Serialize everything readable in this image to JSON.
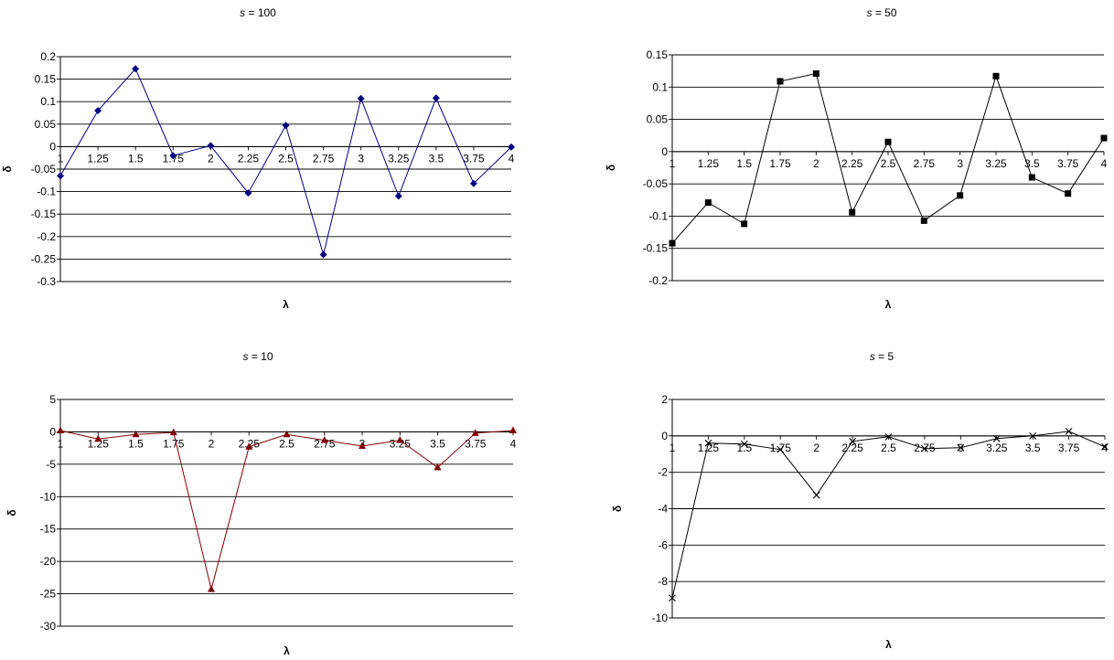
{
  "chart_data": [
    {
      "type": "line",
      "title": "s = 100",
      "title_var": "s",
      "title_rest": " = 100",
      "xlabel": "λ",
      "ylabel": "δ",
      "categories": [
        "1",
        "1.25",
        "1.5",
        "1.75",
        "2",
        "2.25",
        "2.5",
        "2.75",
        "3",
        "3.25",
        "3.5",
        "3.75",
        "4"
      ],
      "series": [
        {
          "values": [
            -0.065,
            0.08,
            0.173,
            -0.02,
            0.002,
            -0.103,
            0.047,
            -0.24,
            0.107,
            -0.11,
            0.108,
            -0.082,
            -0.001
          ],
          "color": "#000080",
          "marker": "diamond"
        }
      ],
      "ylim": [
        -0.3,
        0.2
      ],
      "yticks": [
        0.2,
        0.15,
        0.1,
        0.05,
        0,
        -0.05,
        -0.1,
        -0.15,
        -0.2,
        -0.25,
        -0.3
      ],
      "ytick_labels": [
        "0.2",
        "0.15",
        "0.1",
        "0.05",
        "0",
        "-0.05",
        "-0.1",
        "-0.15",
        "-0.2",
        "-0.25",
        "-0.3"
      ],
      "grid": true,
      "legend": "none"
    },
    {
      "type": "line",
      "title": "s = 50",
      "title_var": "s",
      "title_rest": " = 50",
      "xlabel": "λ",
      "ylabel": "δ",
      "categories": [
        "1",
        "1.25",
        "1.5",
        "1.75",
        "2",
        "2.25",
        "2.5",
        "2.75",
        "3",
        "3.25",
        "3.5",
        "3.75",
        "4"
      ],
      "series": [
        {
          "values": [
            -0.142,
            -0.079,
            -0.112,
            0.109,
            0.121,
            -0.094,
            0.015,
            -0.107,
            -0.068,
            0.117,
            -0.04,
            -0.065,
            0.021
          ],
          "color": "#000000",
          "marker": "square"
        }
      ],
      "ylim": [
        -0.2,
        0.15
      ],
      "yticks": [
        0.15,
        0.1,
        0.05,
        0,
        -0.05,
        -0.1,
        -0.15,
        -0.2
      ],
      "ytick_labels": [
        "0.15",
        "0.1",
        "0.05",
        "0",
        "-0.05",
        "-0.1",
        "-0.15",
        "-0.2"
      ],
      "grid": true,
      "legend": "none"
    },
    {
      "type": "line",
      "title": "s = 10",
      "title_var": "s",
      "title_rest": " = 10",
      "xlabel": "λ",
      "ylabel": "δ",
      "categories": [
        "1",
        "1.25",
        "1.5",
        "1.75",
        "2",
        "2.25",
        "2.5",
        "2.75",
        "3",
        "3.25",
        "3.5",
        "3.75",
        "4"
      ],
      "series": [
        {
          "values": [
            0.2,
            -1.1,
            -0.4,
            -0.1,
            -24.3,
            -2.3,
            -0.4,
            -1.3,
            -2.2,
            -1.3,
            -5.5,
            -0.2,
            0.2
          ],
          "color": "#800000",
          "marker": "triangle"
        }
      ],
      "ylim": [
        -30,
        5
      ],
      "yticks": [
        5,
        0,
        -5,
        -10,
        -15,
        -20,
        -25,
        -30
      ],
      "ytick_labels": [
        "5",
        "0",
        "-5",
        "-10",
        "-15",
        "-20",
        "-25",
        "-30"
      ],
      "grid": true,
      "legend": "none"
    },
    {
      "type": "line",
      "title": "s = 5",
      "title_var": "s",
      "title_rest": " = 5",
      "xlabel": "λ",
      "ylabel": "δ",
      "categories": [
        "1",
        "1.25",
        "1.5",
        "1.75",
        "2",
        "2.25",
        "2.5",
        "2.75",
        "3",
        "3.25",
        "3.5",
        "3.75",
        "4"
      ],
      "series": [
        {
          "values": [
            -8.9,
            -0.4,
            -0.45,
            -0.75,
            -3.25,
            -0.3,
            -0.05,
            -0.7,
            -0.65,
            -0.15,
            0.0,
            0.25,
            -0.6
          ],
          "color": "#000000",
          "marker": "x"
        }
      ],
      "ylim": [
        -10,
        2
      ],
      "yticks": [
        2,
        0,
        -2,
        -4,
        -6,
        -8,
        -10
      ],
      "ytick_labels": [
        "2",
        "0",
        "-2",
        "-4",
        "-6",
        "-8",
        "-10"
      ],
      "grid": true,
      "legend": "none"
    }
  ]
}
